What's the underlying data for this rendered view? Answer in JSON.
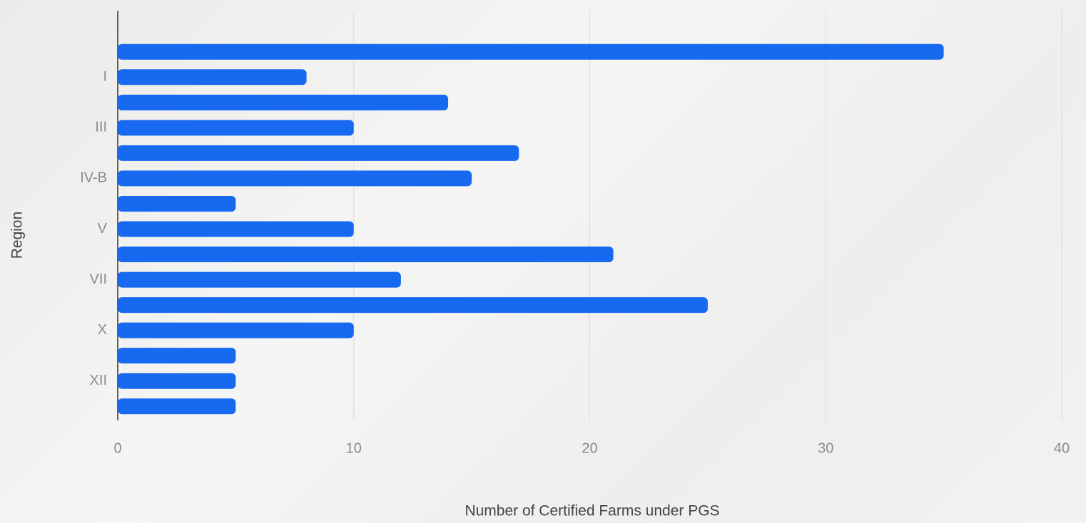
{
  "chart_data": {
    "type": "bar",
    "orientation": "horizontal",
    "categories": [
      null,
      "I",
      null,
      "III",
      null,
      "IV-B",
      null,
      "V",
      null,
      "VII",
      null,
      "X",
      null,
      "XII",
      null
    ],
    "values": [
      35,
      8,
      14,
      10,
      17,
      15,
      5,
      10,
      21,
      12,
      25,
      10,
      5,
      5,
      5
    ],
    "color": "#1769f0",
    "xlim": [
      0,
      40
    ],
    "xticks": [
      0,
      10,
      20,
      30,
      40
    ],
    "grid": true,
    "x_label": "Number of Certified Farms under PGS",
    "y_label": "Region"
  }
}
